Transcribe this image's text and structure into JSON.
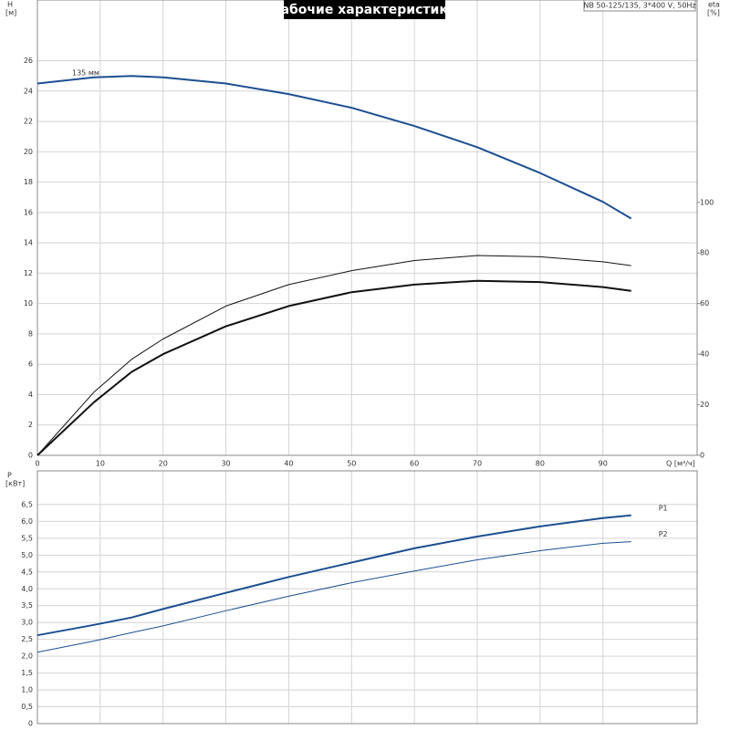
{
  "chart_data": [
    {
      "type": "line",
      "title": "Рабочие характеристики",
      "subtitle": "NB 50-125/135, 3*400 V, 50Hz",
      "ylabel": "H",
      "yunit": "[м]",
      "y2label": "eta",
      "y2unit": "[%]",
      "xlabel": "Q [м³/ч]",
      "annotation": "135 мм",
      "grid": true,
      "xtick_labels": true,
      "x": [
        0,
        9,
        15,
        20,
        30,
        40,
        50,
        60,
        70,
        80,
        90,
        94.5
      ],
      "xlim": [
        0,
        105
      ],
      "xticks": [
        0,
        10,
        20,
        30,
        40,
        50,
        60,
        70,
        80,
        90
      ],
      "ylim": [
        0,
        30
      ],
      "yticks": [
        0,
        2,
        4,
        6,
        8,
        10,
        12,
        14,
        16,
        18,
        20,
        22,
        24,
        26
      ],
      "y2lim": [
        0,
        180
      ],
      "y2ticks": [
        0,
        20,
        40,
        60,
        80,
        100
      ],
      "series": [
        {
          "color": "#1d4f91",
          "line_width": 2,
          "values": [
            24.5,
            24.9,
            25.0,
            24.9,
            24.5,
            23.8,
            22.9,
            21.7,
            20.3,
            18.6,
            16.7,
            15.6
          ]
        },
        {
          "color": "#111111",
          "line_width": 1,
          "axis": "y2",
          "values": [
            0,
            25,
            38,
            46,
            59,
            67.5,
            73,
            77,
            79,
            78.5,
            76.5,
            75
          ]
        },
        {
          "color": "#111111",
          "line_width": 2,
          "axis": "y2",
          "values": [
            0,
            21,
            33,
            40,
            51,
            59,
            64.5,
            67.5,
            69,
            68.5,
            66.5,
            65
          ]
        }
      ]
    },
    {
      "type": "line",
      "ylabel": "P",
      "yunit": "[кВт]",
      "grid": true,
      "xtick_labels": false,
      "x": [
        0,
        9,
        15,
        20,
        30,
        40,
        50,
        60,
        70,
        80,
        90,
        94.5
      ],
      "xlim": [
        0,
        105
      ],
      "xticks": [
        0,
        10,
        20,
        30,
        40,
        50,
        60,
        70,
        80,
        90
      ],
      "ylim": [
        0,
        7.5
      ],
      "yticks": [
        0,
        {
          "value": 0.5,
          "label": "0,5"
        },
        {
          "value": 1,
          "label": "1,0"
        },
        {
          "value": 1.5,
          "label": "1,5"
        },
        {
          "value": 2,
          "label": "2,0"
        },
        {
          "value": 2.5,
          "label": "2,5"
        },
        {
          "value": 3,
          "label": "3,0"
        },
        {
          "value": 3.5,
          "label": "3,5"
        },
        {
          "value": 4,
          "label": "4,0"
        },
        {
          "value": 4.5,
          "label": "4,5"
        },
        {
          "value": 5,
          "label": "5,0"
        },
        {
          "value": 5.5,
          "label": "5,5"
        },
        {
          "value": 6,
          "label": "6,0"
        },
        {
          "value": 6.5,
          "label": "6,5"
        }
      ],
      "series": [
        {
          "name": "P1",
          "color": "#1d4f91",
          "line_width": 2,
          "values": [
            2.62,
            2.93,
            3.15,
            3.4,
            3.88,
            4.35,
            4.78,
            5.2,
            5.55,
            5.85,
            6.1,
            6.18
          ]
        },
        {
          "name": "P2",
          "color": "#1d4f91",
          "line_width": 1,
          "values": [
            2.12,
            2.45,
            2.7,
            2.9,
            3.35,
            3.78,
            4.18,
            4.53,
            4.86,
            5.13,
            5.35,
            5.4
          ]
        }
      ]
    }
  ]
}
